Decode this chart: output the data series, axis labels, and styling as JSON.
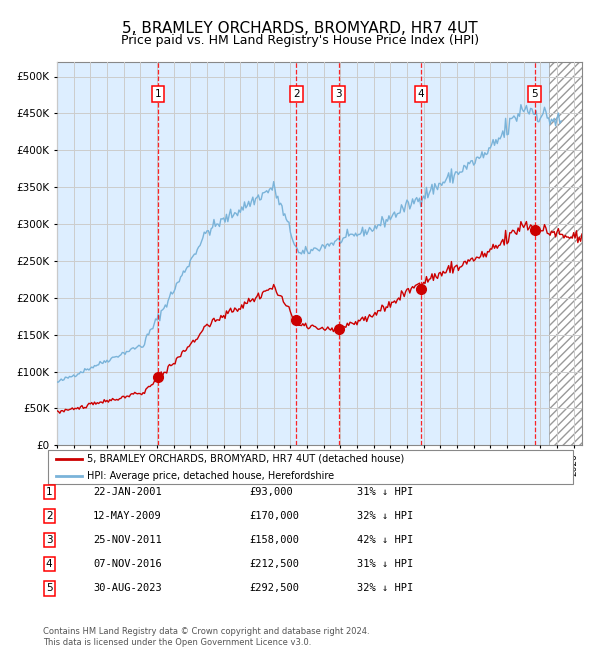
{
  "title": "5, BRAMLEY ORCHARDS, BROMYARD, HR7 4UT",
  "subtitle": "Price paid vs. HM Land Registry's House Price Index (HPI)",
  "title_fontsize": 11,
  "subtitle_fontsize": 9,
  "xlim": [
    1995.0,
    2026.5
  ],
  "ylim": [
    0,
    520000
  ],
  "yticks": [
    0,
    50000,
    100000,
    150000,
    200000,
    250000,
    300000,
    350000,
    400000,
    450000,
    500000
  ],
  "ytick_labels": [
    "£0",
    "£50K",
    "£100K",
    "£150K",
    "£200K",
    "£250K",
    "£300K",
    "£350K",
    "£400K",
    "£450K",
    "£500K"
  ],
  "hpi_color": "#7ab3d9",
  "price_color": "#cc0000",
  "grid_color": "#cccccc",
  "bg_color": "#ddeeff",
  "sale_dates_decimal": [
    2001.06,
    2009.36,
    2011.9,
    2016.85,
    2023.66
  ],
  "sale_prices": [
    93000,
    170000,
    158000,
    212500,
    292500
  ],
  "sale_labels": [
    "1",
    "2",
    "3",
    "4",
    "5"
  ],
  "legend_line1": "5, BRAMLEY ORCHARDS, BROMYARD, HR7 4UT (detached house)",
  "legend_line2": "HPI: Average price, detached house, Herefordshire",
  "table_data": [
    [
      "1",
      "22-JAN-2001",
      "£93,000",
      "31% ↓ HPI"
    ],
    [
      "2",
      "12-MAY-2009",
      "£170,000",
      "32% ↓ HPI"
    ],
    [
      "3",
      "25-NOV-2011",
      "£158,000",
      "42% ↓ HPI"
    ],
    [
      "4",
      "07-NOV-2016",
      "£212,500",
      "31% ↓ HPI"
    ],
    [
      "5",
      "30-AUG-2023",
      "£292,500",
      "32% ↓ HPI"
    ]
  ],
  "footnote": "Contains HM Land Registry data © Crown copyright and database right 2024.\nThis data is licensed under the Open Government Licence v3.0."
}
